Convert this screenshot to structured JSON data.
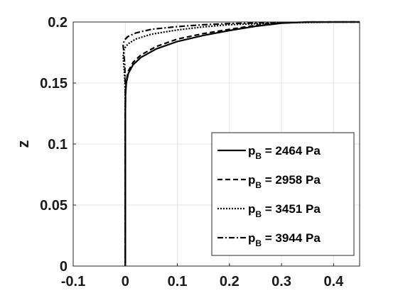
{
  "chart_data": {
    "type": "line",
    "xlabel": "",
    "ylabel": "z",
    "xlim": [
      -0.1,
      0.45
    ],
    "ylim": [
      0,
      0.2
    ],
    "x_ticks": [
      "-0.1",
      "0",
      "0.1",
      "0.2",
      "0.3",
      "0.4"
    ],
    "y_ticks": [
      "0",
      "0.05",
      "0.1",
      "0.15",
      "0.2"
    ],
    "grid": true,
    "legend_position": "bottom-right",
    "series": [
      {
        "name": "p",
        "subscript": "B",
        "value_text": " = 2464 Pa",
        "style": "solid",
        "points": [
          [
            0.0,
            0.0
          ],
          [
            0.0,
            0.12
          ],
          [
            0.0005,
            0.14
          ],
          [
            0.002,
            0.15
          ],
          [
            0.006,
            0.158
          ],
          [
            0.015,
            0.165
          ],
          [
            0.03,
            0.171
          ],
          [
            0.06,
            0.178
          ],
          [
            0.1,
            0.184
          ],
          [
            0.15,
            0.189
          ],
          [
            0.2,
            0.193
          ],
          [
            0.25,
            0.1965
          ],
          [
            0.3,
            0.199
          ],
          [
            0.35,
            0.2
          ],
          [
            0.45,
            0.2
          ]
        ]
      },
      {
        "name": "p",
        "subscript": "B",
        "value_text": " = 2958 Pa",
        "style": "dashed",
        "points": [
          [
            0.0,
            0.0
          ],
          [
            0.0,
            0.12
          ],
          [
            0.0005,
            0.142
          ],
          [
            0.002,
            0.152
          ],
          [
            0.006,
            0.16
          ],
          [
            0.015,
            0.167
          ],
          [
            0.03,
            0.173
          ],
          [
            0.06,
            0.18
          ],
          [
            0.1,
            0.186
          ],
          [
            0.15,
            0.1905
          ],
          [
            0.2,
            0.194
          ],
          [
            0.25,
            0.1972
          ],
          [
            0.3,
            0.1992
          ],
          [
            0.35,
            0.2
          ],
          [
            0.45,
            0.2
          ]
        ]
      },
      {
        "name": "p",
        "subscript": "B",
        "value_text": " = 3451 Pa",
        "style": "dotted",
        "points": [
          [
            0.0,
            0.0
          ],
          [
            0.0,
            0.14
          ],
          [
            -0.001,
            0.155
          ],
          [
            -0.003,
            0.165
          ],
          [
            -0.004,
            0.172
          ],
          [
            -0.002,
            0.178
          ],
          [
            0.005,
            0.182
          ],
          [
            0.02,
            0.186
          ],
          [
            0.05,
            0.19
          ],
          [
            0.1,
            0.1935
          ],
          [
            0.15,
            0.196
          ],
          [
            0.2,
            0.1978
          ],
          [
            0.3,
            0.1993
          ],
          [
            0.4,
            0.2
          ],
          [
            0.45,
            0.2
          ]
        ]
      },
      {
        "name": "p",
        "subscript": "B",
        "value_text": " = 3944 Pa",
        "style": "dashdot",
        "points": [
          [
            0.0,
            0.0
          ],
          [
            0.0,
            0.15
          ],
          [
            -0.001,
            0.165
          ],
          [
            -0.003,
            0.175
          ],
          [
            -0.004,
            0.181
          ],
          [
            -0.002,
            0.185
          ],
          [
            0.005,
            0.188
          ],
          [
            0.02,
            0.191
          ],
          [
            0.05,
            0.194
          ],
          [
            0.1,
            0.1962
          ],
          [
            0.15,
            0.1978
          ],
          [
            0.2,
            0.1987
          ],
          [
            0.3,
            0.1996
          ],
          [
            0.4,
            0.2
          ],
          [
            0.45,
            0.2
          ]
        ]
      }
    ]
  }
}
